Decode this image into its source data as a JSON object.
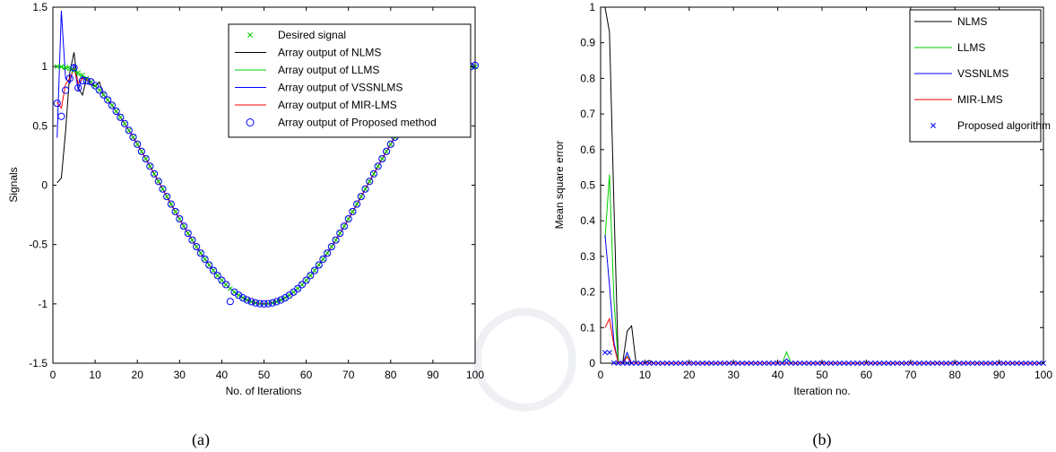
{
  "chart_data": [
    {
      "type": "line",
      "caption": "(a)",
      "xlabel": "No. of Iterations",
      "ylabel": "Signals",
      "xlim": [
        0,
        100
      ],
      "ylim": [
        -1.5,
        1.5
      ],
      "xticks": [
        0,
        10,
        20,
        30,
        40,
        50,
        60,
        70,
        80,
        90,
        100
      ],
      "yticks": [
        -1.5,
        -1,
        -0.5,
        0,
        0.5,
        1,
        1.5
      ],
      "legend_position": "top-right",
      "signal_model": "cos(2*pi*(x-1)/98)",
      "series": [
        {
          "name": "Desired signal",
          "color": "#00cc00",
          "style": "x-markers"
        },
        {
          "name": "Array output of NLMS",
          "color": "#000000",
          "style": "line",
          "initial_points": [
            [
              1,
              0.02
            ],
            [
              2,
              0.06
            ],
            [
              3,
              0.45
            ],
            [
              4,
              0.95
            ],
            [
              5,
              1.12
            ],
            [
              6,
              0.82
            ],
            [
              7,
              0.76
            ],
            [
              8,
              0.9
            ],
            [
              9,
              0.85
            ],
            [
              10,
              0.83
            ],
            [
              11,
              0.87
            ]
          ]
        },
        {
          "name": "Array output of LLMS",
          "color": "#00cc00",
          "style": "line",
          "initial_points": [
            [
              1,
              1.0
            ],
            [
              2,
              1.0
            ],
            [
              3,
              0.98
            ],
            [
              4,
              1.0
            ],
            [
              5,
              0.97
            ],
            [
              6,
              0.93
            ],
            [
              7,
              0.92
            ],
            [
              8,
              0.9
            ]
          ]
        },
        {
          "name": "Array output of VSSNLMS",
          "color": "#0000ff",
          "style": "line",
          "initial_points": [
            [
              1,
              0.4
            ],
            [
              2,
              1.47
            ],
            [
              3,
              0.9
            ],
            [
              4,
              0.86
            ],
            [
              5,
              1.02
            ],
            [
              6,
              0.8
            ],
            [
              7,
              0.92
            ],
            [
              8,
              0.89
            ]
          ]
        },
        {
          "name": "Array output of MIR-LMS",
          "color": "#ff0000",
          "style": "line",
          "initial_points": [
            [
              1,
              0.7
            ],
            [
              2,
              0.65
            ],
            [
              3,
              0.85
            ],
            [
              4,
              0.9
            ],
            [
              5,
              0.98
            ],
            [
              6,
              0.86
            ],
            [
              7,
              0.9
            ],
            [
              8,
              0.89
            ]
          ]
        },
        {
          "name": "Array output of Proposed method",
          "color": "#0000ff",
          "style": "o-markers",
          "initial_points": [
            [
              1,
              0.69
            ],
            [
              2,
              0.58
            ],
            [
              3,
              0.8
            ],
            [
              4,
              0.9
            ],
            [
              5,
              0.99
            ],
            [
              6,
              0.82
            ],
            [
              7,
              0.88
            ],
            [
              8,
              0.88
            ]
          ],
          "outlier_points": [
            [
              42,
              -0.98
            ],
            [
              100,
              1.01
            ]
          ]
        }
      ]
    },
    {
      "type": "line",
      "caption": "(b)",
      "xlabel": "Iteration no.",
      "ylabel": "Mean square error",
      "xlim": [
        0,
        100
      ],
      "ylim": [
        0,
        1
      ],
      "xticks": [
        0,
        10,
        20,
        30,
        40,
        50,
        60,
        70,
        80,
        90,
        100
      ],
      "yticks": [
        0,
        0.1,
        0.2,
        0.3,
        0.4,
        0.5,
        0.6,
        0.7,
        0.8,
        0.9,
        1
      ],
      "legend_position": "top-right",
      "series": [
        {
          "name": "NLMS",
          "color": "#000000",
          "style": "line",
          "points": [
            [
              1,
              1.0
            ],
            [
              2,
              0.93
            ],
            [
              3,
              0.45
            ],
            [
              4,
              0.0
            ],
            [
              5,
              0.002
            ],
            [
              6,
              0.09
            ],
            [
              7,
              0.105
            ],
            [
              8,
              0.0
            ],
            [
              10,
              0.0
            ],
            [
              11,
              0.008
            ],
            [
              12,
              0.0
            ],
            [
              100,
              0.0
            ]
          ]
        },
        {
          "name": "LLMS",
          "color": "#00cc00",
          "style": "line",
          "points": [
            [
              1,
              0.35
            ],
            [
              2,
              0.53
            ],
            [
              3,
              0.18
            ],
            [
              4,
              0.0
            ],
            [
              5,
              0.0
            ],
            [
              6,
              0.02
            ],
            [
              7,
              0.0
            ],
            [
              41,
              0.0
            ],
            [
              42,
              0.032
            ],
            [
              43,
              0.0
            ],
            [
              100,
              0.0
            ]
          ]
        },
        {
          "name": "VSSNLMS",
          "color": "#0000ff",
          "style": "line",
          "points": [
            [
              1,
              0.36
            ],
            [
              2,
              0.22
            ],
            [
              3,
              0.06
            ],
            [
              4,
              0.0
            ],
            [
              5,
              0.0
            ],
            [
              6,
              0.03
            ],
            [
              7,
              0.0
            ],
            [
              41,
              0.0
            ],
            [
              42,
              0.012
            ],
            [
              43,
              0.0
            ],
            [
              100,
              0.0
            ]
          ]
        },
        {
          "name": "MIR-LMS",
          "color": "#ff0000",
          "style": "line",
          "points": [
            [
              1,
              0.1
            ],
            [
              2,
              0.125
            ],
            [
              3,
              0.05
            ],
            [
              4,
              0.0
            ],
            [
              5,
              0.0
            ],
            [
              6,
              0.018
            ],
            [
              7,
              0.0
            ],
            [
              100,
              0.0
            ]
          ]
        },
        {
          "name": "Proposed algorithm",
          "color": "#0000ff",
          "style": "x-markers",
          "points": [
            [
              1,
              0.03
            ],
            [
              2,
              0.03
            ],
            [
              3,
              0.001
            ],
            [
              4,
              0.0
            ],
            [
              5,
              0.0
            ],
            [
              6,
              0.0
            ],
            [
              7,
              0.0
            ],
            [
              8,
              0.0
            ],
            [
              9,
              0.0
            ],
            [
              10,
              0.0
            ],
            [
              42,
              0.001
            ],
            [
              100,
              0.0
            ]
          ]
        }
      ]
    }
  ]
}
